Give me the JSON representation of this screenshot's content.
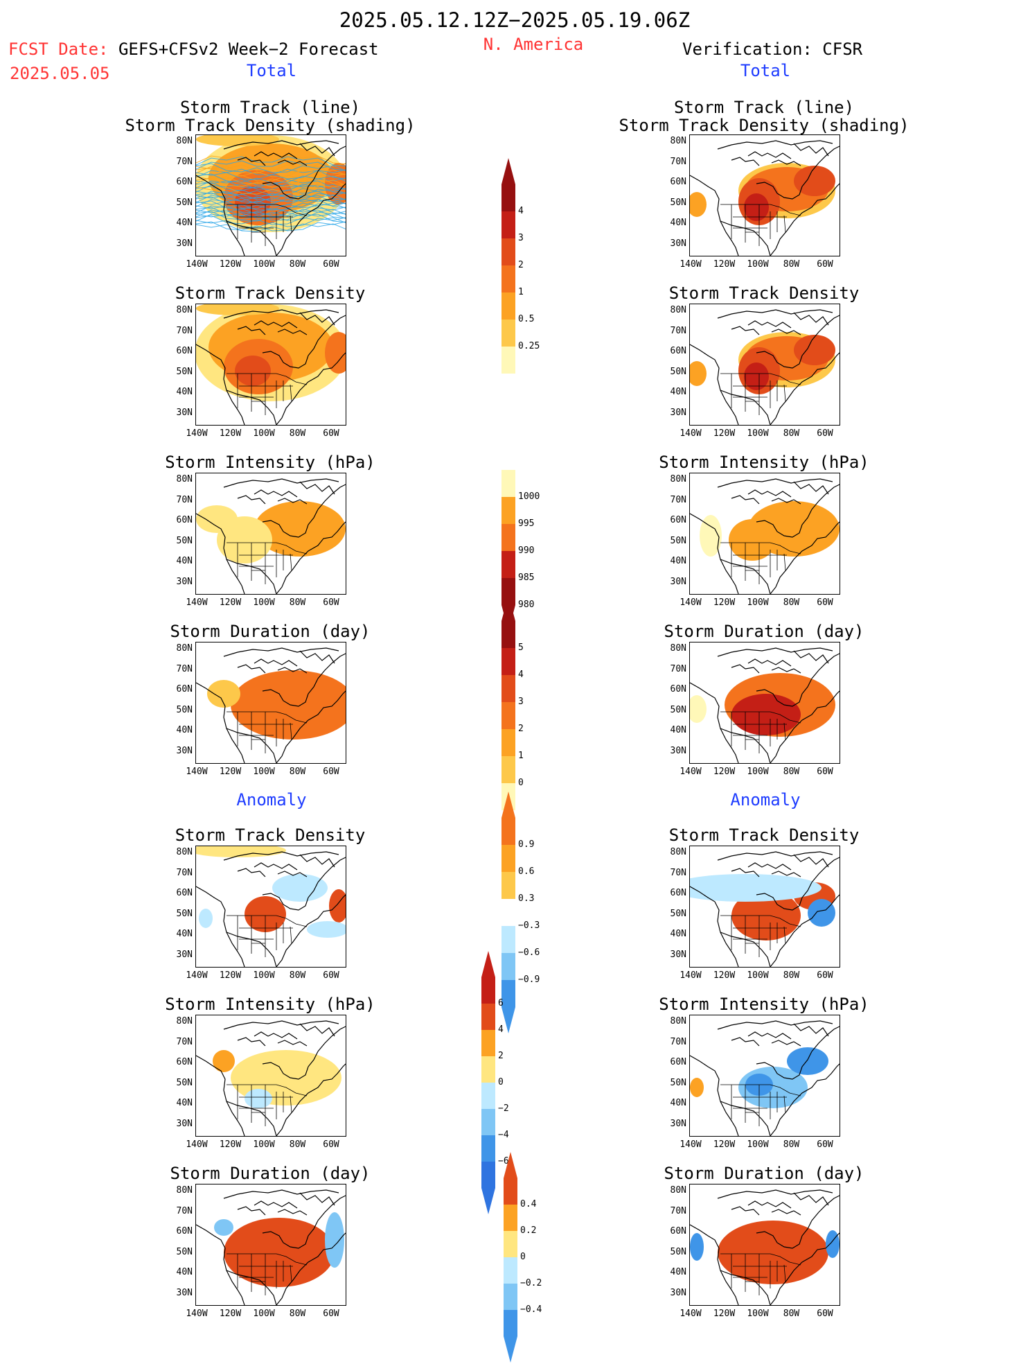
{
  "header": {
    "title": "2025.05.12.12Z−2025.05.19.06Z",
    "fcst_line1": "FCST Date: ",
    "fcst_model": "GEFS+CFSv2 Week−2 Forecast",
    "fcst_date": "2025.05.05",
    "region": "N. America",
    "verification": "Verification: CFSR"
  },
  "sections": {
    "total_left": "Total",
    "total_right": "Total",
    "anomaly_left": "Anomaly",
    "anomaly_right": "Anomaly"
  },
  "panel_titles": {
    "storm_track": [
      "Storm Track (line)",
      "Storm Track Density (shading)"
    ],
    "density": "Storm Track Density",
    "intensity": "Storm Intensity (hPa)",
    "duration": "Storm Duration (day)"
  },
  "axes": {
    "lat_labels": [
      "80N",
      "70N",
      "60N",
      "50N",
      "40N",
      "30N"
    ],
    "lon_labels": [
      "140W",
      "120W",
      "100W",
      "80W",
      "60W"
    ]
  },
  "colorbars": {
    "density_total": [
      "4",
      "3",
      "2",
      "1",
      "0.5",
      "0.25"
    ],
    "intensity_total": [
      "1000",
      "995",
      "990",
      "985",
      "980"
    ],
    "duration_total": [
      "5",
      "4",
      "3",
      "2",
      "1",
      "0"
    ],
    "density_anom": [
      "0.9",
      "0.6",
      "0.3",
      "−0.3",
      "−0.6",
      "−0.9"
    ],
    "intensity_anom": [
      "6",
      "4",
      "2",
      "0",
      "−2",
      "−4",
      "−6"
    ],
    "duration_anom": [
      "0.4",
      "0.2",
      "0",
      "−0.2",
      "−0.4"
    ]
  },
  "colors": {
    "title_red": "#ff3333",
    "title_blue": "#1e3cff",
    "warm": [
      "#fff8b8",
      "#ffe680",
      "#fdc84a",
      "#fca223",
      "#f4731d",
      "#e24c1a",
      "#c41f16",
      "#961010"
    ],
    "cool": [
      "#bde9ff",
      "#7fc6f5",
      "#3f95e8",
      "#1f5fd6"
    ],
    "track_line": "#2aa6e8"
  }
}
